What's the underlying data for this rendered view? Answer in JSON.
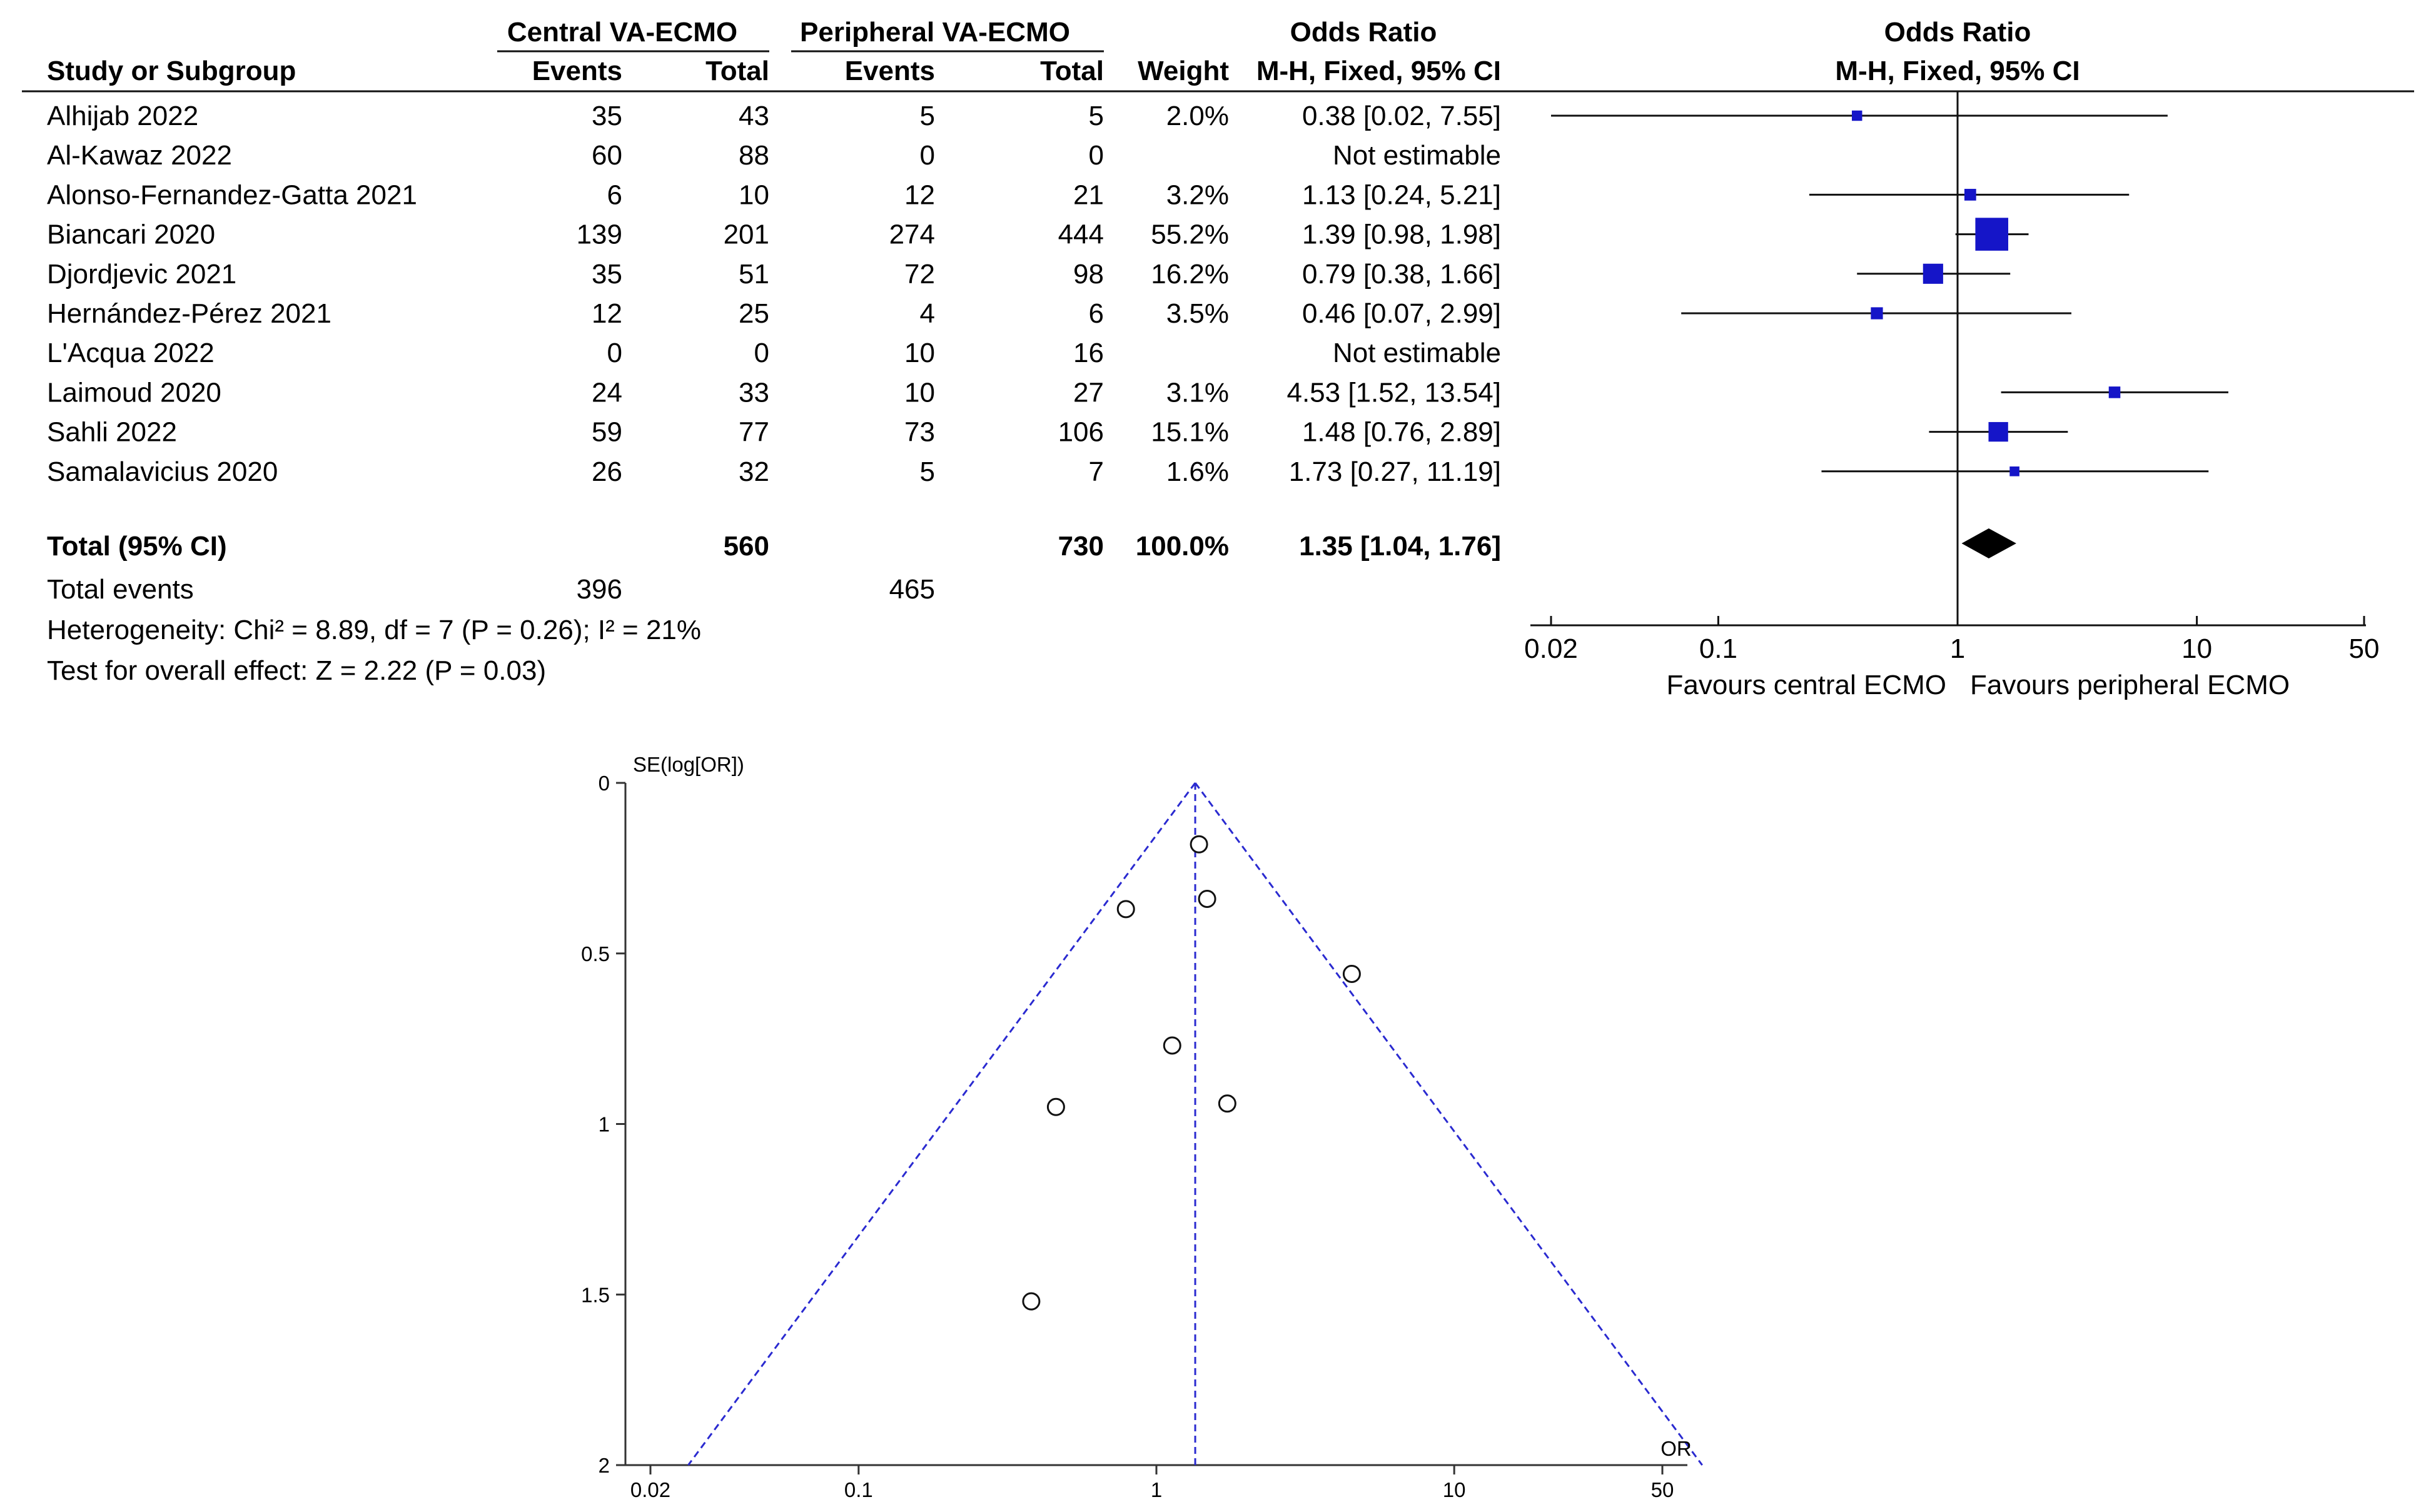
{
  "chart_data": [
    {
      "type": "forest",
      "table": {
        "group_headers": [
          "Central VA-ECMO",
          "Peripheral VA-ECMO",
          "Odds Ratio",
          "Odds Ratio"
        ],
        "columns": [
          "Study or Subgroup",
          "Events",
          "Total",
          "Events",
          "Total",
          "Weight",
          "M-H, Fixed, 95% CI",
          "M-H, Fixed, 95% CI"
        ],
        "rows": [
          {
            "study": "Alhijab 2022",
            "c_events": "35",
            "c_total": "43",
            "p_events": "5",
            "p_total": "5",
            "weight": "2.0%",
            "ci_text": "0.38 [0.02, 7.55]",
            "or": 0.38,
            "lo": 0.02,
            "hi": 7.55,
            "w": 2.0
          },
          {
            "study": "Al-Kawaz 2022",
            "c_events": "60",
            "c_total": "88",
            "p_events": "0",
            "p_total": "0",
            "weight": "",
            "ci_text": "Not estimable",
            "or": null,
            "lo": null,
            "hi": null,
            "w": 0
          },
          {
            "study": "Alonso-Fernandez-Gatta 2021",
            "c_events": "6",
            "c_total": "10",
            "p_events": "12",
            "p_total": "21",
            "weight": "3.2%",
            "ci_text": "1.13 [0.24, 5.21]",
            "or": 1.13,
            "lo": 0.24,
            "hi": 5.21,
            "w": 3.2
          },
          {
            "study": "Biancari 2020",
            "c_events": "139",
            "c_total": "201",
            "p_events": "274",
            "p_total": "444",
            "weight": "55.2%",
            "ci_text": "1.39 [0.98, 1.98]",
            "or": 1.39,
            "lo": 0.98,
            "hi": 1.98,
            "w": 55.2
          },
          {
            "study": "Djordjevic 2021",
            "c_events": "35",
            "c_total": "51",
            "p_events": "72",
            "p_total": "98",
            "weight": "16.2%",
            "ci_text": "0.79 [0.38, 1.66]",
            "or": 0.79,
            "lo": 0.38,
            "hi": 1.66,
            "w": 16.2
          },
          {
            "study": "Hernández-Pérez 2021",
            "c_events": "12",
            "c_total": "25",
            "p_events": "4",
            "p_total": "6",
            "weight": "3.5%",
            "ci_text": "0.46 [0.07, 2.99]",
            "or": 0.46,
            "lo": 0.07,
            "hi": 2.99,
            "w": 3.5
          },
          {
            "study": "L'Acqua 2022",
            "c_events": "0",
            "c_total": "0",
            "p_events": "10",
            "p_total": "16",
            "weight": "",
            "ci_text": "Not estimable",
            "or": null,
            "lo": null,
            "hi": null,
            "w": 0
          },
          {
            "study": "Laimoud 2020",
            "c_events": "24",
            "c_total": "33",
            "p_events": "10",
            "p_total": "27",
            "weight": "3.1%",
            "ci_text": "4.53 [1.52, 13.54]",
            "or": 4.53,
            "lo": 1.52,
            "hi": 13.54,
            "w": 3.1
          },
          {
            "study": "Sahli 2022",
            "c_events": "59",
            "c_total": "77",
            "p_events": "73",
            "p_total": "106",
            "weight": "15.1%",
            "ci_text": "1.48 [0.76, 2.89]",
            "or": 1.48,
            "lo": 0.76,
            "hi": 2.89,
            "w": 15.1
          },
          {
            "study": "Samalavicius 2020",
            "c_events": "26",
            "c_total": "32",
            "p_events": "5",
            "p_total": "7",
            "weight": "1.6%",
            "ci_text": "1.73 [0.27, 11.19]",
            "or": 1.73,
            "lo": 0.27,
            "hi": 11.19,
            "w": 1.6
          }
        ],
        "total": {
          "label": "Total (95% CI)",
          "c_total": "560",
          "p_total": "730",
          "weight": "100.0%",
          "ci_text": "1.35 [1.04, 1.76]",
          "or": 1.35,
          "lo": 1.04,
          "hi": 1.76
        },
        "events": {
          "label": "Total events",
          "c_events": "396",
          "p_events": "465"
        },
        "heterogeneity": "Heterogeneity: Chi² = 8.89, df = 7 (P = 0.26); I² = 21%",
        "overall_effect": "Test for overall effect: Z = 2.22 (P = 0.03)"
      },
      "plot": {
        "scale": "log",
        "xlim": [
          0.02,
          50
        ],
        "ticks": [
          "0.02",
          "0.1",
          "1",
          "10",
          "50"
        ],
        "tick_values": [
          0.02,
          0.1,
          1,
          10,
          50
        ],
        "favours_left": "Favours central ECMO",
        "favours_right": "Favours peripheral ECMO"
      },
      "colors": {
        "marker": "#1515c8",
        "line": "#111111",
        "diamond": "#000000"
      }
    },
    {
      "type": "scatter",
      "title": "",
      "ylabel": "SE(log[OR])",
      "xlabel": "OR",
      "x_scale": "log",
      "xlim": [
        0.02,
        50
      ],
      "ylim": [
        0,
        2
      ],
      "x_ticks": [
        "0.02",
        "0.1",
        "1",
        "10",
        "50"
      ],
      "x_tick_values": [
        0.02,
        0.1,
        1,
        10,
        50
      ],
      "y_ticks": [
        "0",
        "0.5",
        "1",
        "1.5",
        "2"
      ],
      "y_tick_values": [
        0,
        0.5,
        1,
        1.5,
        2
      ],
      "pooled_or": 1.35,
      "points": [
        {
          "x": 1.39,
          "y": 0.18
        },
        {
          "x": 1.48,
          "y": 0.34
        },
        {
          "x": 0.79,
          "y": 0.37
        },
        {
          "x": 4.53,
          "y": 0.56
        },
        {
          "x": 1.13,
          "y": 0.77
        },
        {
          "x": 0.46,
          "y": 0.95
        },
        {
          "x": 1.73,
          "y": 0.94
        },
        {
          "x": 0.38,
          "y": 1.52
        }
      ],
      "colors": {
        "funnel": "#2a2ad0",
        "axis": "#333333"
      }
    }
  ]
}
